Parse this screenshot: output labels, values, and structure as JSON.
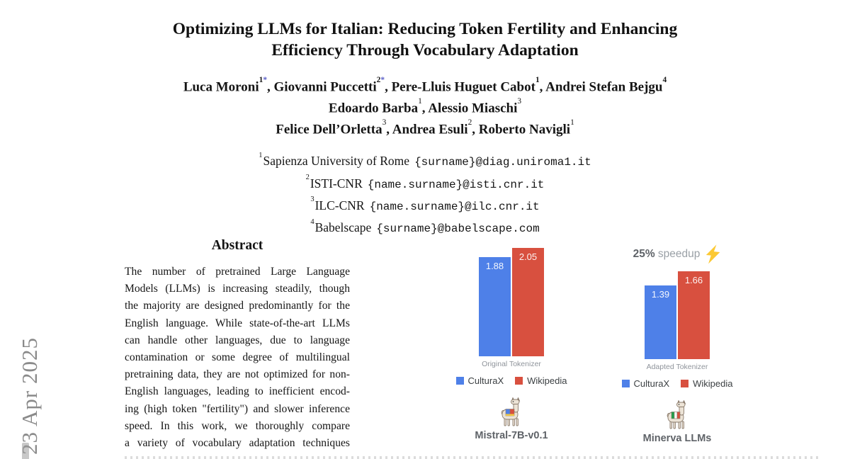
{
  "page": {
    "watermark_date": "23 Apr 2025",
    "title": [
      "Optimizing LLMs for Italian: Reducing Token Fertility and Enhancing",
      "Efficiency Through Vocabulary Adaptation"
    ],
    "authors": [
      [
        {
          "t": "Luca Moroni"
        },
        {
          "sup": "1"
        },
        {
          "sup": "*",
          "c": "#5b5fc7"
        },
        {
          "t": ", Giovanni Puccetti"
        },
        {
          "sup": "2"
        },
        {
          "sup": "*",
          "c": "#5b5fc7"
        },
        {
          "t": ", Pere-Lluis Huguet Cabot"
        },
        {
          "sup": "1"
        },
        {
          "t": ", Andrei Stefan Bejgu"
        },
        {
          "sup": "4"
        }
      ],
      [
        {
          "t": "Edoardo Barba"
        },
        {
          "sup": "1",
          "light": true
        },
        {
          "t": ", Alessio Miaschi"
        },
        {
          "sup": "3",
          "light": true
        }
      ],
      [
        {
          "t": "Felice Dell’Orletta"
        },
        {
          "sup": "3",
          "light": true
        },
        {
          "t": ", Andrea Esuli"
        },
        {
          "sup": "2",
          "light": true
        },
        {
          "t": ", Roberto Navigli"
        },
        {
          "sup": "1",
          "light": true
        }
      ]
    ],
    "affiliations": [
      {
        "sup": "1",
        "name": "Sapienza University of Rome",
        "email": "{surname}@diag.uniroma1.it"
      },
      {
        "sup": "2",
        "name": "ISTI-CNR",
        "email": "{name.surname}@isti.cnr.it"
      },
      {
        "sup": "3",
        "name": "ILC-CNR",
        "email": "{name.surname}@ilc.cnr.it"
      },
      {
        "sup": "4",
        "name": "Babelscape",
        "email": "{surname}@babelscape.com"
      }
    ],
    "abstract": {
      "heading": "Abstract",
      "lines": [
        "The number of pretrained Large Language",
        "Models (LLMs) is increasing steadily, though",
        "the majority are designed predominantly for the",
        "English language. While state-of-the-art LLMs",
        "can handle other languages, due to language",
        "contamination or some degree of multilingual",
        "pretraining data, they are not optimized for non-",
        "English languages, leading to inefficient encod-",
        "ing (high token \"fertility\") and slower inference",
        "speed. In this work, we thoroughly compare",
        "a variety of vocabulary adaptation techniques"
      ]
    }
  },
  "chart_data": [
    {
      "type": "bar",
      "title": "Mistral-7B-v0.1",
      "categories": [
        "Original Tokenizer"
      ],
      "series": [
        {
          "name": "CulturaX",
          "color": "#4e80e8",
          "values": [
            1.88
          ]
        },
        {
          "name": "Wikipedia",
          "color": "#d8503f",
          "values": [
            2.05
          ]
        }
      ],
      "ylim": [
        0,
        2.05
      ],
      "legend_position": "bottom",
      "value_label_color": "#ffffff",
      "mascot_icon": "llama-icon"
    },
    {
      "type": "bar",
      "title": "Minerva LLMs",
      "categories": [
        "Adapted Tokenizer"
      ],
      "series": [
        {
          "name": "CulturaX",
          "color": "#4e80e8",
          "values": [
            1.39
          ]
        },
        {
          "name": "Wikipedia",
          "color": "#d8503f",
          "values": [
            1.66
          ]
        }
      ],
      "ylim": [
        0,
        2.05
      ],
      "legend_position": "bottom",
      "value_label_color": "#ffffff",
      "mascot_icon": "llama-italian-flag-icon",
      "annotation": {
        "bold": "25%",
        "rest": "speedup",
        "icon": "lightning-bolt"
      }
    }
  ]
}
